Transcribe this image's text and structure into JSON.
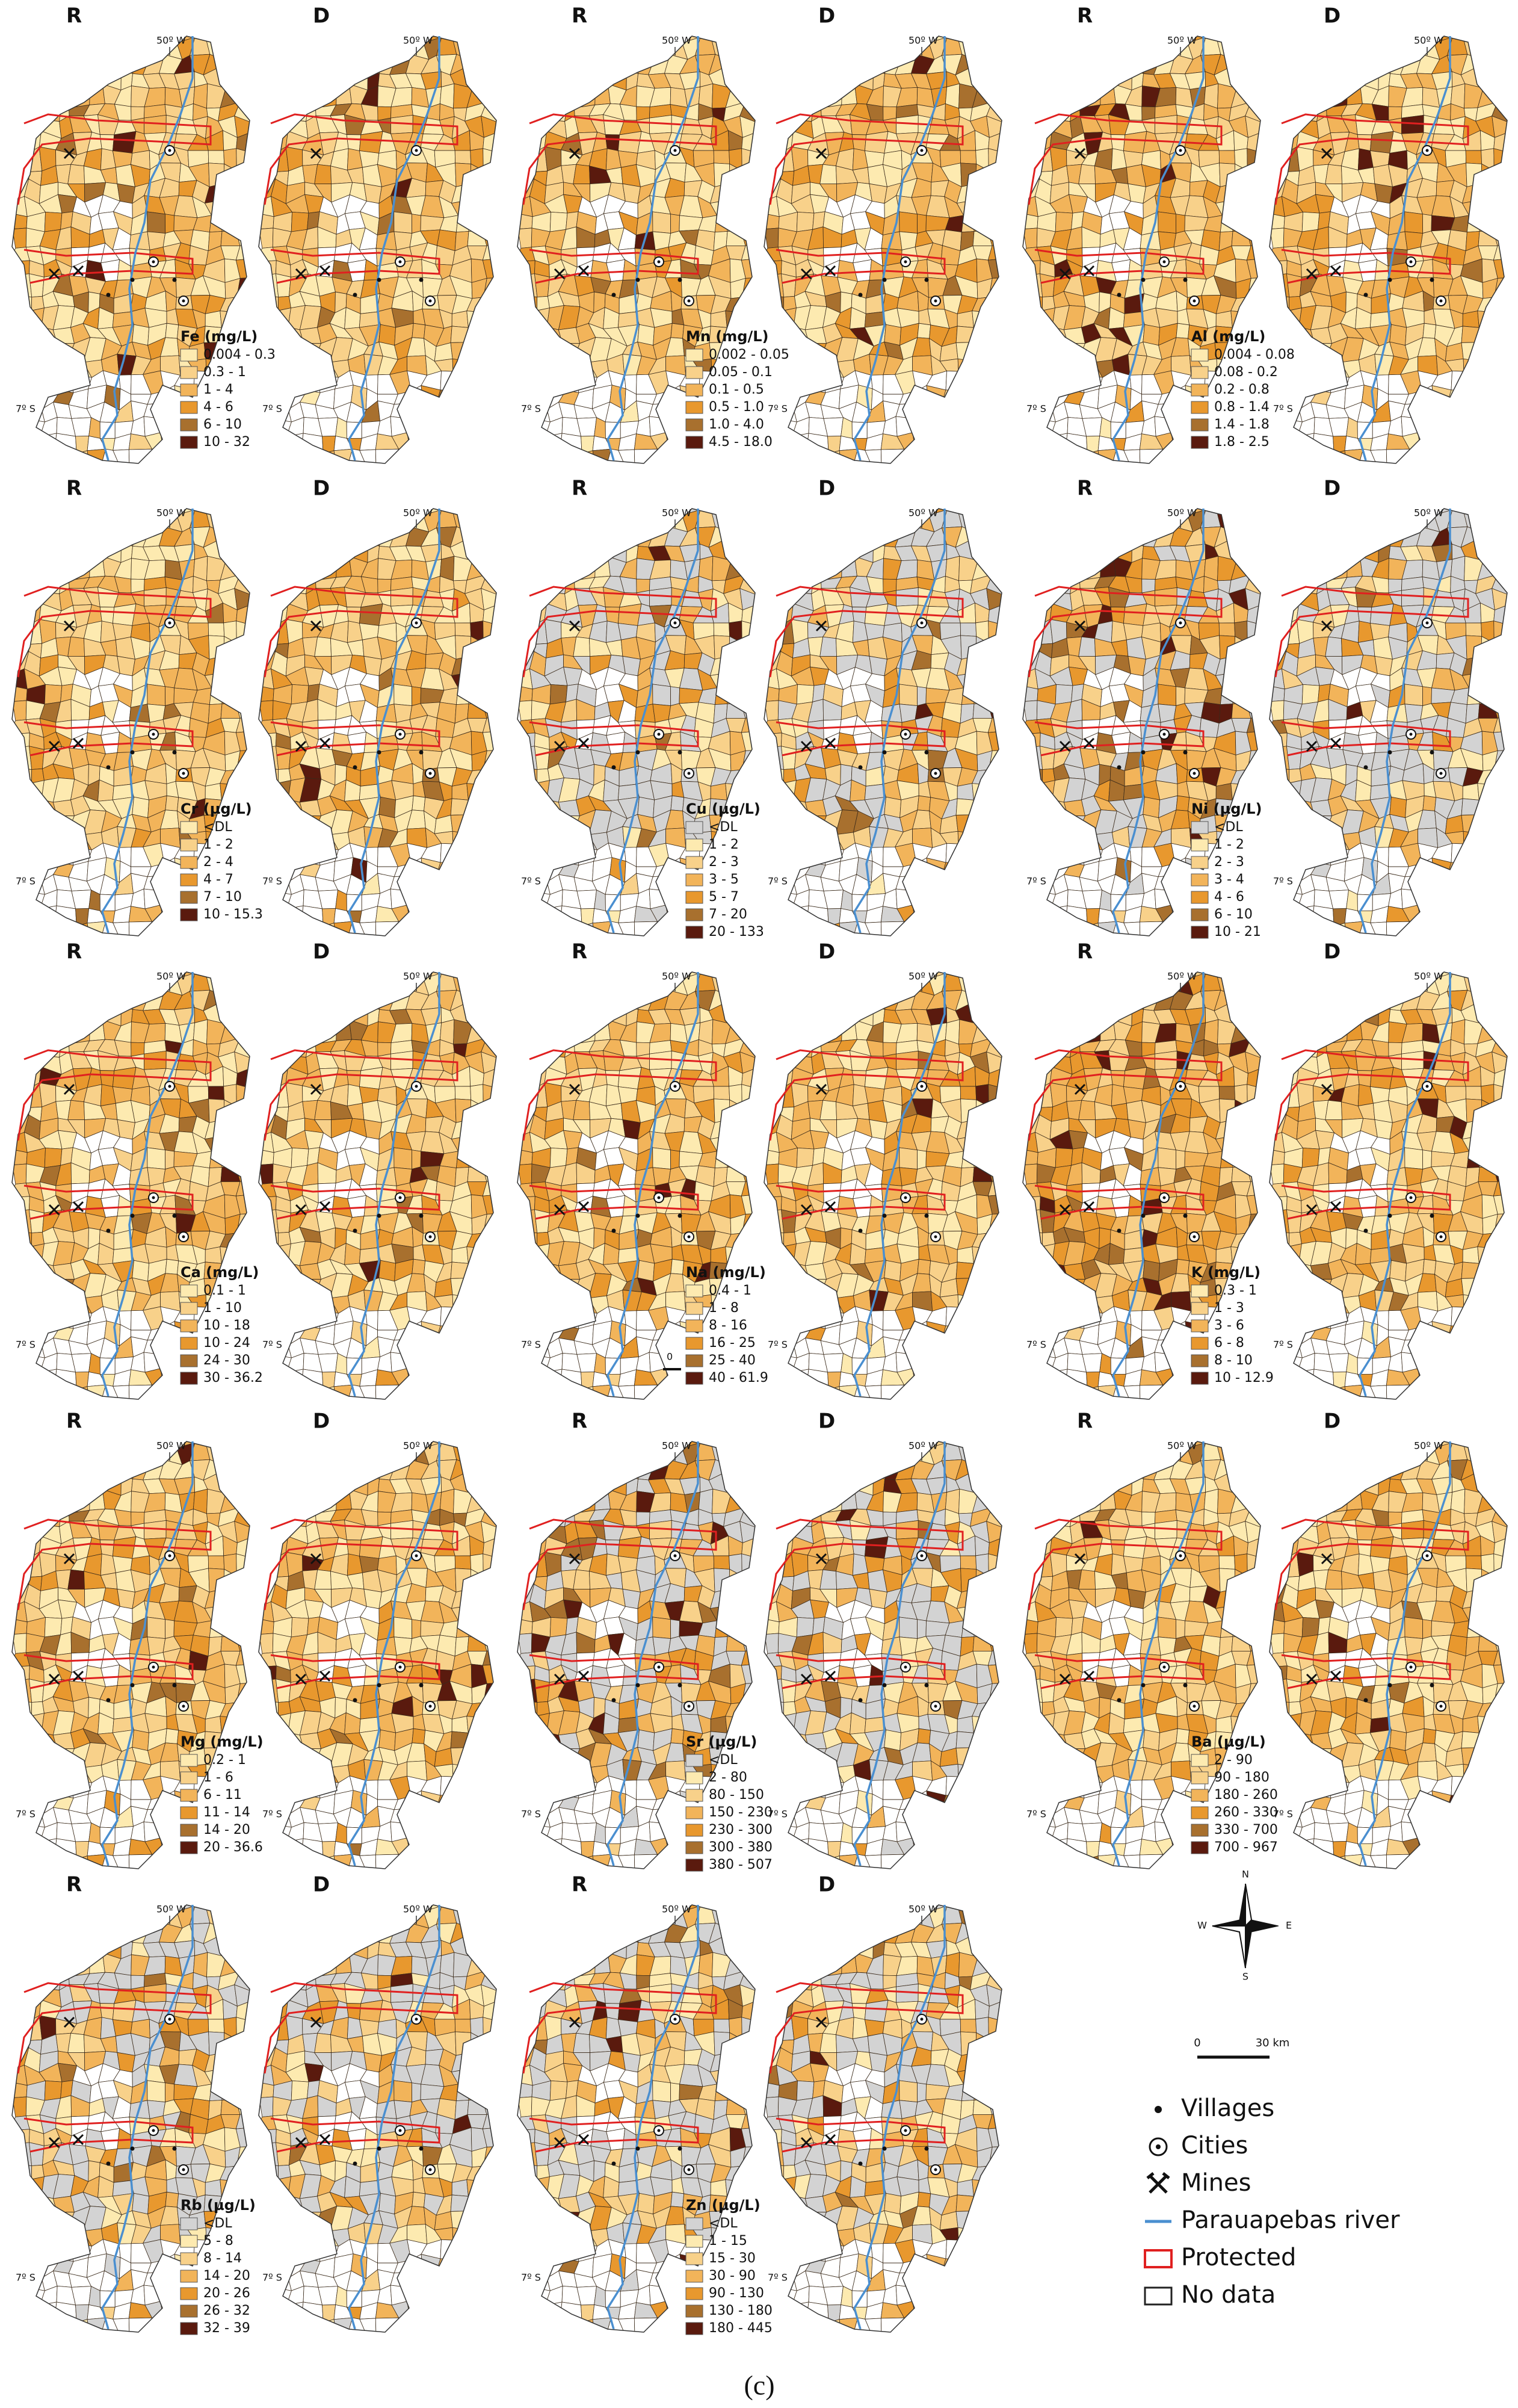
{
  "panels": [
    {
      "maps": [
        "R",
        "D"
      ],
      "lon_label": "50º W",
      "lat_label": "7º S",
      "legend": {
        "title": "Fe (mg/L)",
        "items": [
          "0.004 - 0.3",
          "0.3 - 1",
          "1 - 4",
          "4 - 6",
          "6 - 10",
          "10 - 32"
        ]
      }
    },
    {
      "maps": [
        "R",
        "D"
      ],
      "lon_label": "50º W",
      "lat_label": "7º S",
      "legend": {
        "title": "Mn (mg/L)",
        "items": [
          "0.002 - 0.05",
          "0.05 - 0.1",
          "0.1 - 0.5",
          "0.5 - 1.0",
          "1.0 - 4.0",
          "4.5 - 18.0"
        ]
      }
    },
    {
      "maps": [
        "R",
        "D"
      ],
      "lon_label": "50º W",
      "lat_label": "7º S",
      "legend": {
        "title": "Al (mg/L)",
        "items": [
          "0.004 - 0.08",
          "0.08 - 0.2",
          "0.2 - 0.8",
          "0.8 - 1.4",
          "1.4 - 1.8",
          "1.8 - 2.5"
        ]
      }
    },
    {
      "maps": [
        "R",
        "D"
      ],
      "lon_label": "50º W",
      "lat_label": "7º S",
      "legend": {
        "title": "Cr (µg/L)",
        "items": [
          "<DL",
          "1 - 2",
          "2 - 4",
          "4 - 7",
          "7 - 10",
          "10 - 15.3"
        ]
      }
    },
    {
      "maps": [
        "R",
        "D"
      ],
      "lon_label": "50º W",
      "lat_label": "7º S",
      "legend": {
        "title": "Cu (µg/L)",
        "items": [
          "<DL",
          "1 - 2",
          "2 - 3",
          "3 - 5",
          "5 - 7",
          "7 - 20",
          "20 - 133"
        ]
      }
    },
    {
      "maps": [
        "R",
        "D"
      ],
      "lon_label": "50º W",
      "lat_label": "7º S",
      "legend": {
        "title": "Ni (µg/L)",
        "items": [
          "<DL",
          "1 - 2",
          "2 - 3",
          "3 - 4",
          "4 - 6",
          "6 - 10",
          "10 - 21"
        ]
      }
    },
    {
      "maps": [
        "R",
        "D"
      ],
      "lon_label": "50º W",
      "lat_label": "7º S",
      "legend": {
        "title": "Ca (mg/L)",
        "items": [
          "0.1 - 1",
          "1 - 10",
          "10 - 18",
          "10 - 24",
          "24 - 30",
          "30 - 36.2"
        ]
      }
    },
    {
      "maps": [
        "R",
        "D"
      ],
      "lon_label": "50º W",
      "lat_label": "7º S",
      "scale_label": "0",
      "legend": {
        "title": "Na (mg/L)",
        "items": [
          "0.4 - 1",
          "1 - 8",
          "8 - 16",
          "16 - 25",
          "25 - 40",
          "40 - 61.9"
        ]
      }
    },
    {
      "maps": [
        "R",
        "D"
      ],
      "lon_label": "50º W",
      "lat_label": "7º S",
      "legend": {
        "title": "K (mg/L)",
        "items": [
          "0.3 - 1",
          "1 - 3",
          "3 - 6",
          "6 - 8",
          "8 - 10",
          "10 - 12.9"
        ]
      }
    },
    {
      "maps": [
        "R",
        "D"
      ],
      "lon_label": "50º W",
      "lat_label": "7º S",
      "legend": {
        "title": "Mg (mg/L)",
        "items": [
          "0.2 - 1",
          "1 - 6",
          "6 - 11",
          "11 - 14",
          "14 - 20",
          "20 - 36.6"
        ]
      }
    },
    {
      "maps": [
        "R",
        "D"
      ],
      "lon_label": "50º W",
      "lat_label": "7º S",
      "legend": {
        "title": "Sr (µg/L)",
        "items": [
          "<DL",
          "2 - 80",
          "80 - 150",
          "150 - 230",
          "230 - 300",
          "300 - 380",
          "380 - 507"
        ]
      }
    },
    {
      "maps": [
        "R",
        "D"
      ],
      "lon_label": "50º W",
      "lat_label": "7º S",
      "legend": {
        "title": "Ba (µg/L)",
        "items": [
          "2 - 90",
          "90 - 180",
          "180 - 260",
          "260 - 330",
          "330 - 700",
          "700 - 967"
        ]
      }
    },
    {
      "maps": [
        "R",
        "D"
      ],
      "lon_label": "50º W",
      "lat_label": "7º S",
      "legend": {
        "title": "Rb (µg/L)",
        "items": [
          "<DL",
          "5 - 8",
          "8 - 14",
          "14 - 20",
          "20 - 26",
          "26 - 32",
          "32 - 39"
        ]
      }
    },
    {
      "maps": [
        "R",
        "D"
      ],
      "lon_label": "50º W",
      "lat_label": "7º S",
      "legend": {
        "title": "Zn (µg/L)",
        "items": [
          "<DL",
          "1 - 15",
          "15 - 30",
          "30 - 90",
          "90 - 130",
          "130 - 180",
          "180 - 445"
        ]
      }
    }
  ],
  "compass": {
    "n": "N",
    "s": "S",
    "e": "E",
    "w": "W"
  },
  "scale": {
    "start": "0",
    "end": "30 km"
  },
  "legend": {
    "items": [
      "Villages",
      "Cities",
      "Mines",
      "Parauapebas river",
      "Protected",
      "No data"
    ]
  },
  "caption": "(c)"
}
